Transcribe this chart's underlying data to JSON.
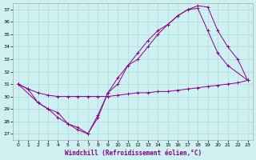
{
  "xlabel": "Windchill (Refroidissement éolien,°C)",
  "background_color": "#cff0f0",
  "line_color": "#880088",
  "grid_color": "#aadddd",
  "xlim": [
    -0.5,
    23.5
  ],
  "ylim": [
    26.5,
    37.5
  ],
  "yticks": [
    27,
    28,
    29,
    30,
    31,
    32,
    33,
    34,
    35,
    36,
    37
  ],
  "xticks": [
    0,
    1,
    2,
    3,
    4,
    5,
    6,
    7,
    8,
    9,
    10,
    11,
    12,
    13,
    14,
    15,
    16,
    17,
    18,
    19,
    20,
    21,
    22,
    23
  ],
  "series1_x": [
    0,
    1,
    2,
    3,
    4,
    5,
    6,
    7,
    8,
    9,
    10,
    11,
    12,
    13,
    14,
    15,
    16,
    17,
    18,
    19,
    20,
    21,
    22,
    23
  ],
  "series1_y": [
    31.0,
    30.6,
    30.3,
    30.1,
    30.0,
    30.0,
    30.0,
    30.0,
    30.0,
    30.0,
    30.1,
    30.2,
    30.3,
    30.3,
    30.4,
    30.4,
    30.5,
    30.6,
    30.7,
    30.8,
    30.9,
    31.0,
    31.1,
    31.3
  ],
  "series2_x": [
    0,
    1,
    2,
    3,
    4,
    5,
    6,
    7,
    8,
    9,
    10,
    11,
    12,
    13,
    14,
    15,
    16,
    17,
    18,
    19,
    20,
    21,
    23
  ],
  "series2_y": [
    31.0,
    30.6,
    29.5,
    29.0,
    28.3,
    27.8,
    27.5,
    27.0,
    28.3,
    30.3,
    31.5,
    32.5,
    33.0,
    34.0,
    35.0,
    35.8,
    36.5,
    37.0,
    37.1,
    35.3,
    33.5,
    32.5,
    31.3
  ],
  "series3_x": [
    0,
    2,
    3,
    4,
    5,
    6,
    7,
    8,
    9,
    10,
    11,
    12,
    13,
    14,
    15,
    16,
    17,
    18,
    19,
    20,
    21,
    22,
    23
  ],
  "series3_y": [
    31.0,
    29.5,
    29.0,
    28.7,
    27.8,
    27.3,
    27.0,
    28.5,
    30.3,
    31.0,
    32.5,
    33.5,
    34.5,
    35.3,
    35.8,
    36.5,
    37.0,
    37.3,
    37.2,
    35.3,
    34.0,
    33.0,
    31.3
  ]
}
